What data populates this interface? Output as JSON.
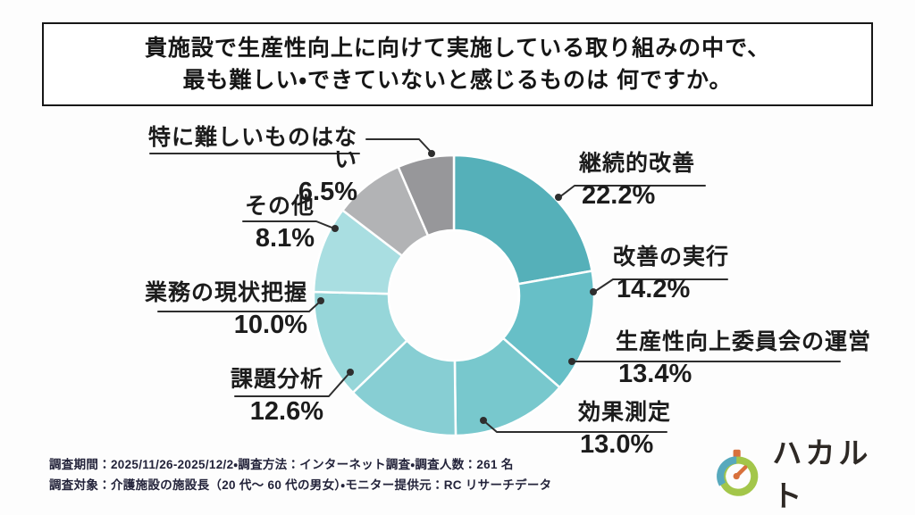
{
  "title": {
    "line1": "貴施設で生産性向上に向けて実施している取り組みの中で、",
    "line2": "最も難しい・できていないと感じるものは 何ですか。"
  },
  "chart_data": {
    "type": "pie",
    "subtype": "donut",
    "title": "貴施設で生産性向上に向けて実施している取り組みの中で、最も難しい・できていないと感じるものは 何ですか。",
    "start_angle_deg": -90,
    "direction": "clockwise",
    "categories": [
      "継続的改善",
      "改善の実行",
      "生産性向上委員会の運営",
      "効果測定",
      "課題分析",
      "業務の現状把握",
      "その他",
      "特に難しいものはない"
    ],
    "values": [
      22.2,
      14.2,
      13.4,
      13.0,
      12.6,
      10.0,
      8.1,
      6.5
    ],
    "value_labels": [
      "22.2%",
      "14.2%",
      "13.4%",
      "13.0%",
      "12.6%",
      "10.0%",
      "8.1%",
      "6.5%"
    ],
    "colors": [
      "#55b0b9",
      "#67bfc7",
      "#78c8cd",
      "#87ced3",
      "#96d6d9",
      "#a9dee1",
      "#b2b3b5",
      "#97979a"
    ],
    "hole_color": "#ffffff",
    "separator_color": "#ffffff",
    "legend_position": "callout-labels"
  },
  "footer": {
    "line1": "調査期間：2025/11/26-2025/12/2・調査方法：インターネット調査・調査人数：261 名",
    "line2": "調査対象：介護施設の施設長（20 代〜 60 代の男女）・モニター提供元：RC リサーチデータ"
  },
  "logo": {
    "text": "ハカルト",
    "ring_green": "#a3c64a",
    "ring_blue": "#57a9bd",
    "accent_orange": "#d8713c",
    "text_color": "#2e2925"
  }
}
